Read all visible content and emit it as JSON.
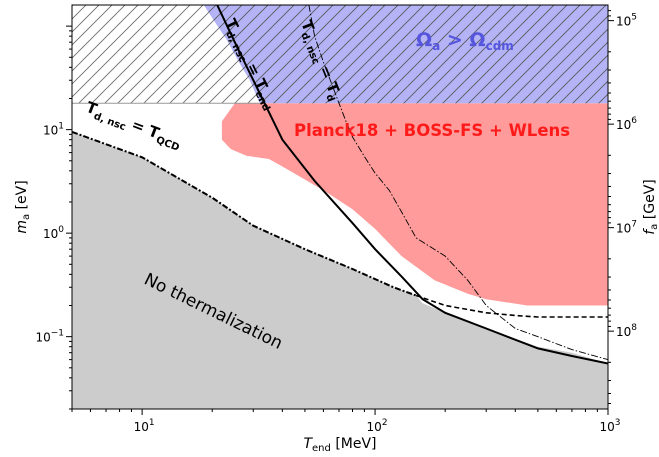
{
  "chart_data": {
    "type": "line",
    "xlabel_main": "T",
    "xlabel_sub": "end",
    "xlabel_unit": " [MeV]",
    "ylabel_main": "m",
    "ylabel_sub": "a",
    "ylabel_unit": " [eV]",
    "y2label_main": "f",
    "y2label_sub": "a",
    "y2label_unit": " [GeV]",
    "xscale": "log",
    "yscale": "log",
    "xlim": [
      5,
      1000
    ],
    "ylim": [
      0.02,
      160
    ],
    "x_ticks": [
      {
        "v": 10,
        "b": "10",
        "e": "1"
      },
      {
        "v": 100,
        "b": "10",
        "e": "2"
      },
      {
        "v": 1000,
        "b": "10",
        "e": "3"
      }
    ],
    "y_ticks": [
      {
        "v": 0.1,
        "b": "10",
        "e": "−1"
      },
      {
        "v": 1,
        "b": "10",
        "e": "0"
      },
      {
        "v": 10,
        "b": "10",
        "e": "1"
      }
    ],
    "y2_ticks": [
      {
        "v": 113,
        "b": "10",
        "e": "5"
      },
      {
        "v": 11.3,
        "b": "10",
        "e": "6"
      },
      {
        "v": 1.13,
        "b": "10",
        "e": "7"
      },
      {
        "v": 0.113,
        "b": "10",
        "e": "8"
      }
    ],
    "regions": [
      {
        "name": "No thermalization",
        "color": "#cccccc",
        "boundary": [
          [
            5,
            9.5
          ],
          [
            10,
            5.4
          ],
          [
            20,
            2.2
          ],
          [
            30,
            1.18
          ],
          [
            50,
            0.7
          ],
          [
            80,
            0.45
          ],
          [
            120,
            0.3
          ],
          [
            150,
            0.25
          ],
          [
            160,
            0.21
          ],
          [
            200,
            0.17
          ],
          [
            300,
            0.12
          ],
          [
            500,
            0.08
          ],
          [
            700,
            0.07
          ],
          [
            1000,
            0.055
          ]
        ]
      },
      {
        "name": "Planck18 + BOSS-FS + WLens",
        "color": "#ff9b9b",
        "boundary": [
          [
            25,
            18
          ],
          [
            22,
            12
          ],
          [
            22,
            8
          ],
          [
            24,
            6.5
          ],
          [
            28,
            5.6
          ],
          [
            35,
            5.2
          ],
          [
            40,
            4.4
          ],
          [
            60,
            2.6
          ],
          [
            80,
            1.7
          ],
          [
            100,
            1.1
          ],
          [
            130,
            0.6
          ],
          [
            180,
            0.35
          ],
          [
            250,
            0.26
          ],
          [
            300,
            0.23
          ],
          [
            450,
            0.2
          ],
          [
            600,
            0.2
          ],
          [
            1000,
            0.2
          ],
          [
            1000,
            18
          ]
        ]
      },
      {
        "name": "Omega_a > Omega_cdm",
        "color": "#b3b3f5",
        "boundary": [
          [
            18.4,
            160
          ],
          [
            20.5,
            110
          ],
          [
            23,
            75
          ],
          [
            26,
            45
          ],
          [
            29,
            30
          ],
          [
            32,
            18
          ],
          [
            1000,
            18
          ],
          [
            1000,
            160
          ]
        ]
      },
      {
        "name": "hatched-excluded",
        "color": "#ffffff",
        "boundary": [
          [
            5,
            18
          ],
          [
            5,
            160
          ],
          [
            18.4,
            160
          ],
          [
            20.5,
            110
          ],
          [
            23,
            75
          ],
          [
            26,
            45
          ],
          [
            29,
            30
          ],
          [
            32,
            18
          ]
        ]
      }
    ],
    "series": [
      {
        "name": "T_d,nsc = T_end",
        "style": "solid",
        "x": [
          21,
          25,
          30,
          40,
          55,
          80,
          100,
          130,
          160,
          200,
          300,
          500,
          700,
          1000
        ],
        "y": [
          160,
          70,
          30,
          8,
          3.2,
          1.25,
          0.7,
          0.38,
          0.23,
          0.17,
          0.12,
          0.077,
          0.065,
          0.055
        ]
      },
      {
        "name": "T_d,nsc = T_d",
        "style": "dashdot-thin",
        "x": [
          52,
          55,
          60,
          65,
          70,
          75,
          80,
          90,
          100,
          115,
          130,
          150,
          200,
          250,
          300,
          400,
          500,
          700,
          1000
        ],
        "y": [
          160,
          80,
          45,
          28,
          18,
          12,
          8.5,
          5.5,
          3.8,
          2.6,
          1.6,
          0.9,
          0.6,
          0.35,
          0.2,
          0.12,
          0.1,
          0.075,
          0.06
        ]
      },
      {
        "name": "T_d,nsc = T_QCD",
        "style": "dashdot-thick",
        "x": [
          5,
          10,
          20,
          30,
          50,
          80,
          120,
          150
        ],
        "y": [
          9.5,
          5.4,
          2.2,
          1.18,
          0.7,
          0.45,
          0.3,
          0.25
        ]
      },
      {
        "name": "dashed",
        "style": "dashed",
        "x": [
          150,
          200,
          300,
          400,
          500,
          700,
          1000
        ],
        "y": [
          0.25,
          0.2,
          0.17,
          0.16,
          0.155,
          0.155,
          0.155
        ]
      }
    ],
    "annotations": {
      "omega": {
        "a": "Ω",
        "a_sub": "a",
        "gt": " > ",
        "b": "Ω",
        "b_sub": "cdm"
      },
      "planck": "Planck18 + BOSS-FS + WLens",
      "no_therm": "No thermalization",
      "label_tend": {
        "T": "T",
        "sub": "d, nsc",
        "eq": " = ",
        "T2": "T",
        "sub2": "end"
      },
      "label_td": {
        "T": "T",
        "sub": "d, nsc",
        "eq": " = ",
        "T2": "T",
        "sub2": "d"
      },
      "label_tqcd": {
        "T": "T",
        "sub": "d, nsc",
        "eq": " = ",
        "T2": "T",
        "sub2": "QCD"
      }
    },
    "colors": {
      "no_therm": "#cccccc",
      "planck": "#ff9b9b",
      "planck_text": "#ff1a1a",
      "omega": "#b3b3f5",
      "omega_text": "#5555dd"
    }
  }
}
